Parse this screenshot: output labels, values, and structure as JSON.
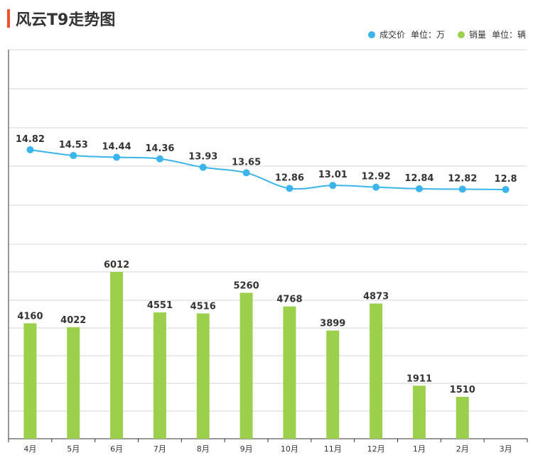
{
  "header": {
    "title": "风云T9走势图"
  },
  "legend": [
    {
      "name": "成交价",
      "unit": "单位：万",
      "color": "#3ab4ea"
    },
    {
      "name": "销量",
      "unit": "单位：辆",
      "color": "#9ccf4b"
    }
  ],
  "chart_data": {
    "type": "bar+line",
    "categories": [
      "4月",
      "5月",
      "6月",
      "7月",
      "8月",
      "9月",
      "10月",
      "11月",
      "12月",
      "1月",
      "2月",
      "3月"
    ],
    "series": [
      {
        "name": "成交价",
        "type": "line",
        "unit": "万",
        "color": "#3ab4ea",
        "values": [
          14.82,
          14.53,
          14.44,
          14.36,
          13.93,
          13.65,
          12.86,
          13.01,
          12.92,
          12.84,
          12.82,
          12.8
        ]
      },
      {
        "name": "销量",
        "type": "bar",
        "unit": "辆",
        "color": "#9ccf4b",
        "values": [
          4160,
          4022,
          6012,
          4551,
          4516,
          5260,
          4768,
          3899,
          4873,
          1911,
          1510,
          null
        ]
      }
    ],
    "grid": true
  }
}
